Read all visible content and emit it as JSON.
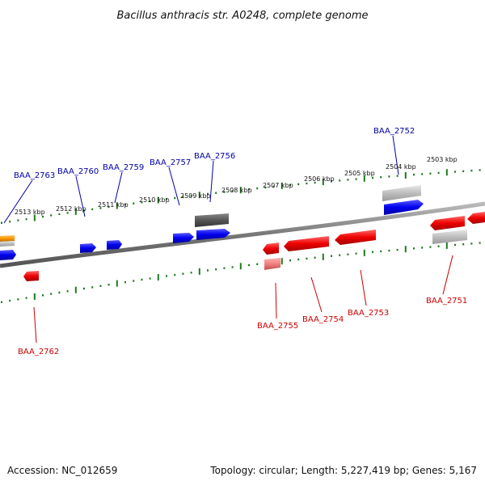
{
  "title": "Bacillus anthracis str. A0248, complete genome",
  "footer": {
    "accession": "Accession: NC_012659",
    "topology": "Topology: circular; Length: 5,227,419 bp; Genes: 5,167"
  },
  "colors": {
    "forward_label": "#0000aa",
    "reverse_label": "#cc0000",
    "ruler": "#1e7a1e",
    "backbone": "#777777",
    "gene_blue": "#0000ee",
    "gene_red": "#ee0000",
    "gene_orange": "#ff9900",
    "gene_lightgray": "#bdbdbd",
    "gene_darkgray": "#555555",
    "gene_pink": "#f08080"
  },
  "ruler_ticks": [
    {
      "label": "2513 kbp"
    },
    {
      "label": "2512 kbp"
    },
    {
      "label": "2511 kbp"
    },
    {
      "label": "2510 kbp"
    },
    {
      "label": "2509 kbp"
    },
    {
      "label": "2508 kbp"
    },
    {
      "label": "2507 kbp"
    },
    {
      "label": "2506 kbp"
    },
    {
      "label": "2505 kbp"
    },
    {
      "label": "2504 kbp"
    },
    {
      "label": "2503 kbp"
    }
  ],
  "gene_labels": {
    "forward": [
      "BAA_2763",
      "BAA_2760",
      "BAA_2759",
      "BAA_2757",
      "BAA_2756",
      "BAA_2752"
    ],
    "reverse": [
      "BAA_2762",
      "BAA_2755",
      "BAA_2754",
      "BAA_2753",
      "BAA_2751"
    ]
  }
}
